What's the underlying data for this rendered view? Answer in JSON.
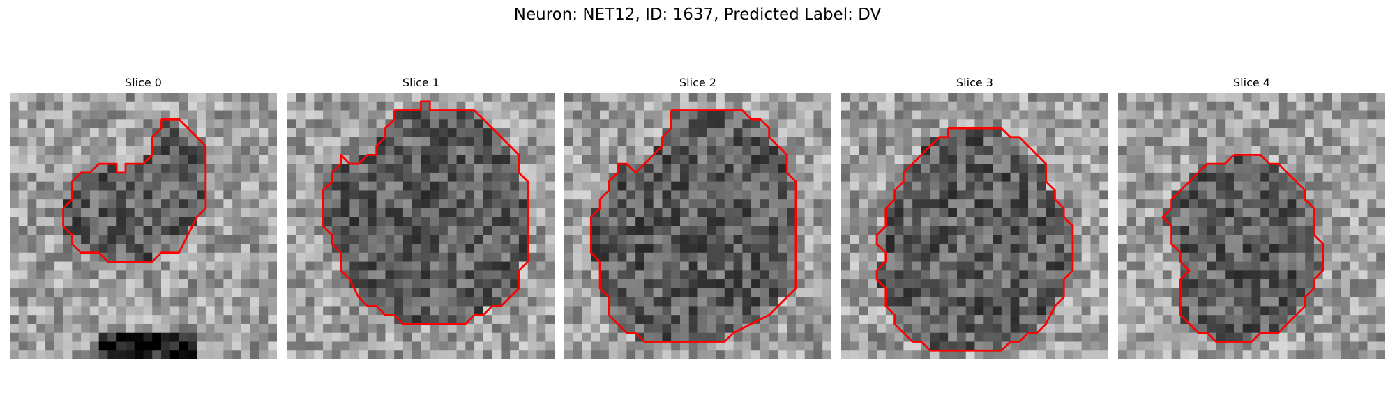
{
  "figure": {
    "suptitle": "Neuron: NET12, ID: 1637, Predicted Label: DV",
    "contour_color": "#ff0000",
    "colormap": "gray",
    "grid_cells": 30
  },
  "panels": [
    {
      "title": "Slice 0",
      "contour": [
        [
          17,
          3
        ],
        [
          19,
          3
        ],
        [
          22,
          6
        ],
        [
          22,
          13
        ],
        [
          21,
          14
        ],
        [
          20,
          16
        ],
        [
          19,
          18
        ],
        [
          17,
          18
        ],
        [
          16,
          19
        ],
        [
          11,
          19
        ],
        [
          10,
          18
        ],
        [
          8,
          18
        ],
        [
          7,
          17
        ],
        [
          7,
          16
        ],
        [
          6,
          15
        ],
        [
          6,
          13
        ],
        [
          7,
          12
        ],
        [
          7,
          10
        ],
        [
          8,
          9
        ],
        [
          9,
          9
        ],
        [
          10,
          8
        ],
        [
          12,
          8
        ],
        [
          12,
          9
        ],
        [
          13,
          9
        ],
        [
          13,
          8
        ],
        [
          15,
          8
        ],
        [
          16,
          7
        ],
        [
          16,
          5
        ],
        [
          17,
          4
        ],
        [
          17,
          3
        ]
      ],
      "dark_blob": true
    },
    {
      "title": "Slice 1",
      "contour": [
        [
          12,
          2
        ],
        [
          15,
          2
        ],
        [
          15,
          1
        ],
        [
          16,
          1
        ],
        [
          16,
          2
        ],
        [
          21,
          2
        ],
        [
          24,
          5
        ],
        [
          26,
          7
        ],
        [
          26,
          9
        ],
        [
          27,
          10
        ],
        [
          27,
          19
        ],
        [
          26,
          20
        ],
        [
          26,
          22
        ],
        [
          25,
          23
        ],
        [
          24,
          24
        ],
        [
          23,
          24
        ],
        [
          22,
          25
        ],
        [
          21,
          25
        ],
        [
          20,
          26
        ],
        [
          13,
          26
        ],
        [
          12,
          25
        ],
        [
          11,
          25
        ],
        [
          10,
          24
        ],
        [
          9,
          24
        ],
        [
          8,
          23
        ],
        [
          7,
          21
        ],
        [
          6,
          20
        ],
        [
          6,
          18
        ],
        [
          5,
          17
        ],
        [
          5,
          16
        ],
        [
          4,
          15
        ],
        [
          4,
          11
        ],
        [
          5,
          10
        ],
        [
          5,
          9
        ],
        [
          6,
          8
        ],
        [
          6,
          7
        ],
        [
          7,
          8
        ],
        [
          8,
          8
        ],
        [
          9,
          7
        ],
        [
          10,
          7
        ],
        [
          10,
          6
        ],
        [
          11,
          5
        ],
        [
          11,
          4
        ],
        [
          12,
          3
        ],
        [
          12,
          2
        ]
      ],
      "dark_blob": false
    },
    {
      "title": "Slice 2",
      "contour": [
        [
          12,
          2
        ],
        [
          20,
          2
        ],
        [
          21,
          3
        ],
        [
          22,
          3
        ],
        [
          23,
          4
        ],
        [
          23,
          5
        ],
        [
          25,
          7
        ],
        [
          25,
          9
        ],
        [
          26,
          10
        ],
        [
          26,
          22
        ],
        [
          25,
          23
        ],
        [
          24,
          24
        ],
        [
          23,
          25
        ],
        [
          21,
          26
        ],
        [
          19,
          27
        ],
        [
          18,
          28
        ],
        [
          9,
          28
        ],
        [
          8,
          27
        ],
        [
          7,
          27
        ],
        [
          5,
          25
        ],
        [
          5,
          23
        ],
        [
          4,
          22
        ],
        [
          4,
          19
        ],
        [
          3,
          18
        ],
        [
          3,
          14
        ],
        [
          4,
          13
        ],
        [
          4,
          12
        ],
        [
          5,
          11
        ],
        [
          5,
          10
        ],
        [
          6,
          9
        ],
        [
          6,
          8
        ],
        [
          7,
          8
        ],
        [
          8,
          9
        ],
        [
          9,
          8
        ],
        [
          10,
          7
        ],
        [
          11,
          6
        ],
        [
          11,
          5
        ],
        [
          12,
          4
        ],
        [
          12,
          2
        ]
      ],
      "dark_blob": false
    },
    {
      "title": "Slice 3",
      "contour": [
        [
          12,
          4
        ],
        [
          18,
          4
        ],
        [
          19,
          5
        ],
        [
          20,
          5
        ],
        [
          23,
          8
        ],
        [
          23,
          10
        ],
        [
          24,
          11
        ],
        [
          24,
          12
        ],
        [
          25,
          13
        ],
        [
          25,
          14
        ],
        [
          26,
          15
        ],
        [
          26,
          20
        ],
        [
          25,
          21
        ],
        [
          25,
          23
        ],
        [
          24,
          24
        ],
        [
          23,
          26
        ],
        [
          22,
          27
        ],
        [
          21,
          27
        ],
        [
          20,
          28
        ],
        [
          19,
          28
        ],
        [
          18,
          29
        ],
        [
          10,
          29
        ],
        [
          9,
          28
        ],
        [
          8,
          28
        ],
        [
          7,
          27
        ],
        [
          6,
          26
        ],
        [
          6,
          25
        ],
        [
          5,
          24
        ],
        [
          5,
          22
        ],
        [
          4,
          21
        ],
        [
          4,
          20
        ],
        [
          5,
          19
        ],
        [
          5,
          18
        ],
        [
          4,
          17
        ],
        [
          4,
          16
        ],
        [
          5,
          15
        ],
        [
          5,
          13
        ],
        [
          6,
          12
        ],
        [
          6,
          11
        ],
        [
          7,
          10
        ],
        [
          7,
          9
        ],
        [
          8,
          8
        ],
        [
          9,
          7
        ],
        [
          10,
          6
        ],
        [
          11,
          5
        ],
        [
          12,
          5
        ],
        [
          12,
          4
        ]
      ],
      "dark_blob": false
    },
    {
      "title": "Slice 4",
      "contour": [
        [
          13,
          7
        ],
        [
          16,
          7
        ],
        [
          17,
          8
        ],
        [
          18,
          8
        ],
        [
          19,
          9
        ],
        [
          20,
          10
        ],
        [
          21,
          11
        ],
        [
          21,
          12
        ],
        [
          22,
          13
        ],
        [
          22,
          16
        ],
        [
          23,
          17
        ],
        [
          23,
          20
        ],
        [
          22,
          21
        ],
        [
          22,
          22
        ],
        [
          21,
          23
        ],
        [
          21,
          24
        ],
        [
          20,
          25
        ],
        [
          19,
          26
        ],
        [
          18,
          27
        ],
        [
          16,
          27
        ],
        [
          15,
          28
        ],
        [
          11,
          28
        ],
        [
          10,
          27
        ],
        [
          9,
          27
        ],
        [
          7,
          25
        ],
        [
          7,
          21
        ],
        [
          8,
          20
        ],
        [
          7,
          19
        ],
        [
          7,
          18
        ],
        [
          6,
          17
        ],
        [
          6,
          15
        ],
        [
          5,
          14
        ],
        [
          6,
          13
        ],
        [
          6,
          12
        ],
        [
          7,
          11
        ],
        [
          8,
          10
        ],
        [
          9,
          9
        ],
        [
          10,
          8
        ],
        [
          12,
          8
        ],
        [
          13,
          7
        ]
      ],
      "dark_blob": false
    }
  ]
}
